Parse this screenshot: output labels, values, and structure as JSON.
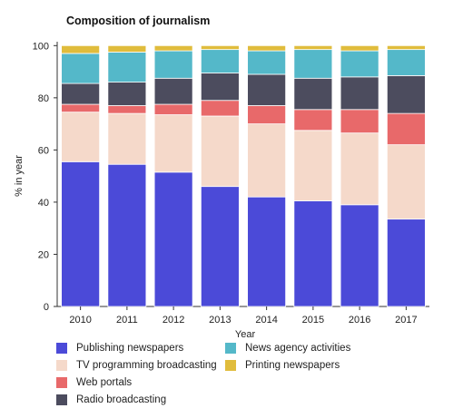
{
  "chart_data": {
    "type": "bar",
    "stacked": true,
    "title": "Composition of journalism",
    "xlabel": "Year",
    "ylabel": "% in year",
    "ylim": [
      0,
      100
    ],
    "yticks": [
      0,
      20,
      40,
      60,
      80,
      100
    ],
    "categories": [
      "2010",
      "2011",
      "2012",
      "2013",
      "2014",
      "2015",
      "2016",
      "2017"
    ],
    "series": [
      {
        "name": "Publishing newspapers",
        "color": "#4b4ad8",
        "values": [
          55.5,
          54.5,
          51.5,
          46,
          42,
          40.5,
          39,
          33.5
        ]
      },
      {
        "name": "TV programming broadcasting",
        "color": "#f5d9ca",
        "values": [
          19,
          19.5,
          22,
          27,
          28,
          27,
          27.5,
          28.5
        ]
      },
      {
        "name": "Web portals",
        "color": "#e8696a",
        "values": [
          3,
          3,
          4,
          6,
          7,
          8,
          9,
          12
        ]
      },
      {
        "name": "Radio broadcasting",
        "color": "#4c4c5e",
        "values": [
          8,
          9,
          10,
          10.5,
          12,
          12,
          12.5,
          14.5
        ]
      },
      {
        "name": "News agency activities",
        "color": "#54b8c9",
        "values": [
          11.5,
          11.5,
          10.5,
          9,
          9,
          11,
          10,
          10
        ]
      },
      {
        "name": "Printing newspapers",
        "color": "#e0bc3c",
        "values": [
          3,
          2.5,
          2,
          1.5,
          2,
          1.5,
          2,
          1.5
        ]
      }
    ],
    "grid": false,
    "legend_position": "bottom"
  }
}
